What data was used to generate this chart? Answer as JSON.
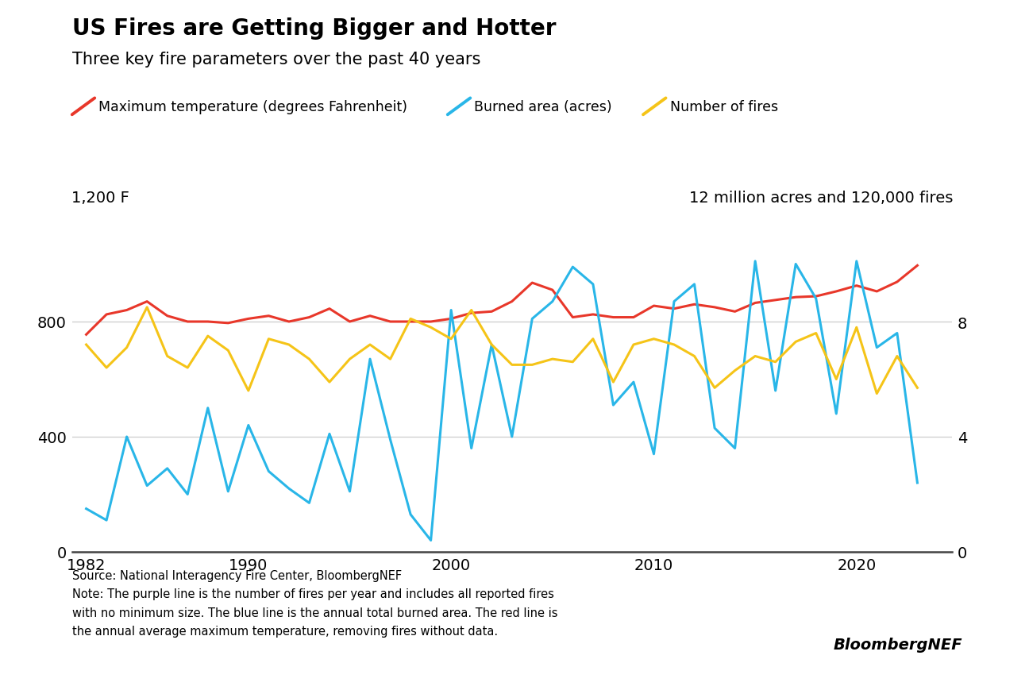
{
  "title": "US Fires are Getting Bigger and Hotter",
  "subtitle": "Three key fire parameters over the past 40 years",
  "legend_labels": [
    "Maximum temperature (degrees Fahrenheit)",
    "Burned area (acres)",
    "Number of fires"
  ],
  "left_axis_label": "1,200 F",
  "right_axis_label": "12 million acres and 120,000 fires",
  "source_text": "Source: National Interagency Fire Center, BloombergNEF\nNote: The purple line is the number of fires per year and includes all reported fires\nwith no minimum size. The blue line is the annual total burned area. The red line is\nthe annual average maximum temperature, removing fires without data.",
  "bloomberg_text": "BloombergNEF",
  "years": [
    1982,
    1983,
    1984,
    1985,
    1986,
    1987,
    1988,
    1989,
    1990,
    1991,
    1992,
    1993,
    1994,
    1995,
    1996,
    1997,
    1998,
    1999,
    2000,
    2001,
    2002,
    2003,
    2004,
    2005,
    2006,
    2007,
    2008,
    2009,
    2010,
    2011,
    2012,
    2013,
    2014,
    2015,
    2016,
    2017,
    2018,
    2019,
    2020,
    2021,
    2022,
    2023
  ],
  "temp_data": [
    755,
    825,
    840,
    870,
    820,
    800,
    800,
    795,
    810,
    820,
    800,
    815,
    845,
    800,
    820,
    800,
    800,
    800,
    810,
    830,
    835,
    870,
    935,
    910,
    815,
    825,
    815,
    815,
    855,
    845,
    860,
    850,
    835,
    865,
    875,
    885,
    888,
    905,
    925,
    905,
    938,
    995
  ],
  "burned_data": [
    1.5,
    1.1,
    4.0,
    2.3,
    2.9,
    2.0,
    5.0,
    2.1,
    4.4,
    2.8,
    2.2,
    1.7,
    4.1,
    2.1,
    6.7,
    3.9,
    1.3,
    0.4,
    8.4,
    3.6,
    7.2,
    4.0,
    8.1,
    8.7,
    9.9,
    9.3,
    5.1,
    5.9,
    3.4,
    8.7,
    9.3,
    4.3,
    3.6,
    10.1,
    5.6,
    10.0,
    8.8,
    4.8,
    10.1,
    7.1,
    7.6,
    2.4
  ],
  "fires_data": [
    7.2,
    6.4,
    7.1,
    8.5,
    6.8,
    6.4,
    7.5,
    7.0,
    5.6,
    7.4,
    7.2,
    6.7,
    5.9,
    6.7,
    7.2,
    6.7,
    8.1,
    7.8,
    7.4,
    8.4,
    7.2,
    6.5,
    6.5,
    6.7,
    6.6,
    7.4,
    5.9,
    7.2,
    7.4,
    7.2,
    6.8,
    5.7,
    6.3,
    6.8,
    6.6,
    7.3,
    7.6,
    6.0,
    7.8,
    5.5,
    6.8,
    5.7
  ],
  "ylim_left": [
    0,
    1200
  ],
  "ylim_right": [
    0,
    12
  ],
  "yticks_left": [
    0,
    400,
    800
  ],
  "yticks_right": [
    0,
    4,
    8
  ],
  "xticks": [
    1982,
    1990,
    2000,
    2010,
    2020
  ],
  "line_color_temp": "#e8372a",
  "line_color_burned": "#29b6e8",
  "line_color_fires": "#f5c418",
  "line_width": 2.2,
  "bg_color": "#ffffff",
  "grid_color": "#cccccc",
  "title_fontsize": 20,
  "subtitle_fontsize": 15,
  "tick_fontsize": 14
}
